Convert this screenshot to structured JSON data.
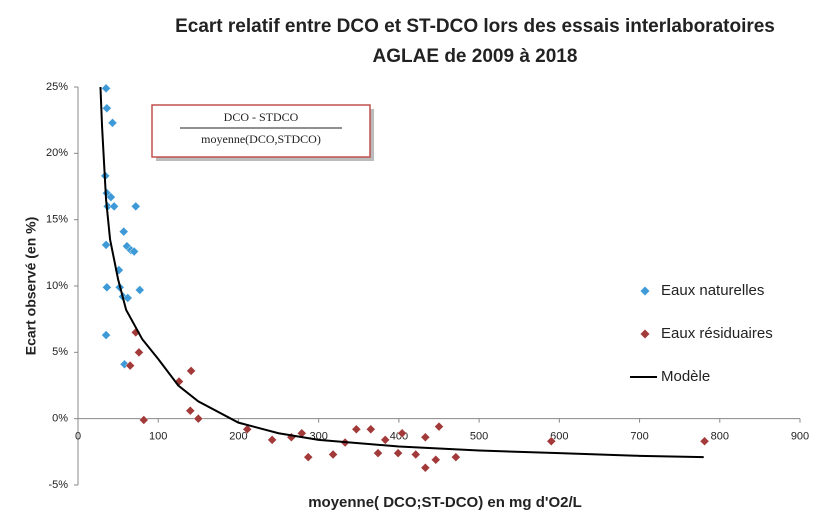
{
  "chart_data": {
    "type": "scatter",
    "title": "Ecart relatif entre DCO et ST-DCO lors des essais interlaboratoires",
    "subtitle": "AGLAE de 2009 à 2018",
    "y_label": "Ecart observé (en %)",
    "x_label": "moyenne( DCO;ST-DCO) en mg d'O2/L",
    "annotation_numerator": "DCO - STDCO",
    "annotation_denominator": "moyenne(DCO,STDCO)",
    "xlim": [
      0,
      900
    ],
    "xticks": [
      0,
      100,
      200,
      300,
      400,
      500,
      600,
      700,
      800,
      900
    ],
    "ylim": [
      -5,
      25
    ],
    "yticks": [
      {
        "value": -5,
        "label": "-5%"
      },
      {
        "value": 0,
        "label": "0%"
      },
      {
        "value": 5,
        "label": "5%"
      },
      {
        "value": 10,
        "label": "10%"
      },
      {
        "value": 15,
        "label": "15%"
      },
      {
        "value": 20,
        "label": "20%"
      },
      {
        "value": 25,
        "label": "25%"
      }
    ],
    "legend": "right",
    "series": [
      {
        "name": "Eaux naturelles",
        "type": "scatter",
        "color": "#3d9ad6",
        "x": [
          35,
          36,
          43,
          34,
          36,
          41,
          37,
          45,
          72,
          35,
          57,
          61,
          66,
          70,
          51,
          36,
          52,
          56,
          62,
          77,
          35,
          58
        ],
        "values": [
          24.9,
          23.4,
          22.3,
          18.3,
          17.0,
          16.7,
          16.0,
          16.0,
          16.0,
          13.1,
          14.1,
          13.0,
          12.7,
          12.6,
          11.2,
          9.9,
          9.9,
          9.2,
          9.1,
          9.7,
          6.3,
          4.1
        ]
      },
      {
        "name": "Eaux résiduaires",
        "type": "scatter",
        "color": "#a33a3a",
        "x": [
          72,
          76,
          65,
          82,
          126,
          141,
          140,
          150,
          211,
          242,
          266,
          279,
          287,
          318,
          333,
          347,
          365,
          374,
          383,
          399,
          404,
          421,
          433,
          433,
          446,
          450,
          471,
          590,
          781
        ],
        "values": [
          6.5,
          5.0,
          4.0,
          -0.1,
          2.8,
          3.6,
          0.6,
          0.0,
          -0.8,
          -1.6,
          -1.4,
          -1.1,
          -2.9,
          -2.7,
          -1.8,
          -0.8,
          -0.8,
          -2.6,
          -1.6,
          -2.6,
          -1.1,
          -2.7,
          -1.4,
          -3.7,
          -3.1,
          -0.6,
          -2.9,
          -1.7,
          -1.7
        ]
      },
      {
        "name": "Modèle",
        "type": "line",
        "color": "#000000",
        "x": [
          28,
          30,
          35,
          40,
          50,
          60,
          80,
          100,
          125,
          150,
          200,
          250,
          300,
          400,
          500,
          600,
          700,
          780
        ],
        "values": [
          25,
          22,
          16.5,
          13.5,
          10.5,
          8.2,
          6,
          4.5,
          2.5,
          1.3,
          -0.3,
          -1.1,
          -1.6,
          -2.1,
          -2.4,
          -2.6,
          -2.8,
          -2.9
        ]
      }
    ]
  }
}
